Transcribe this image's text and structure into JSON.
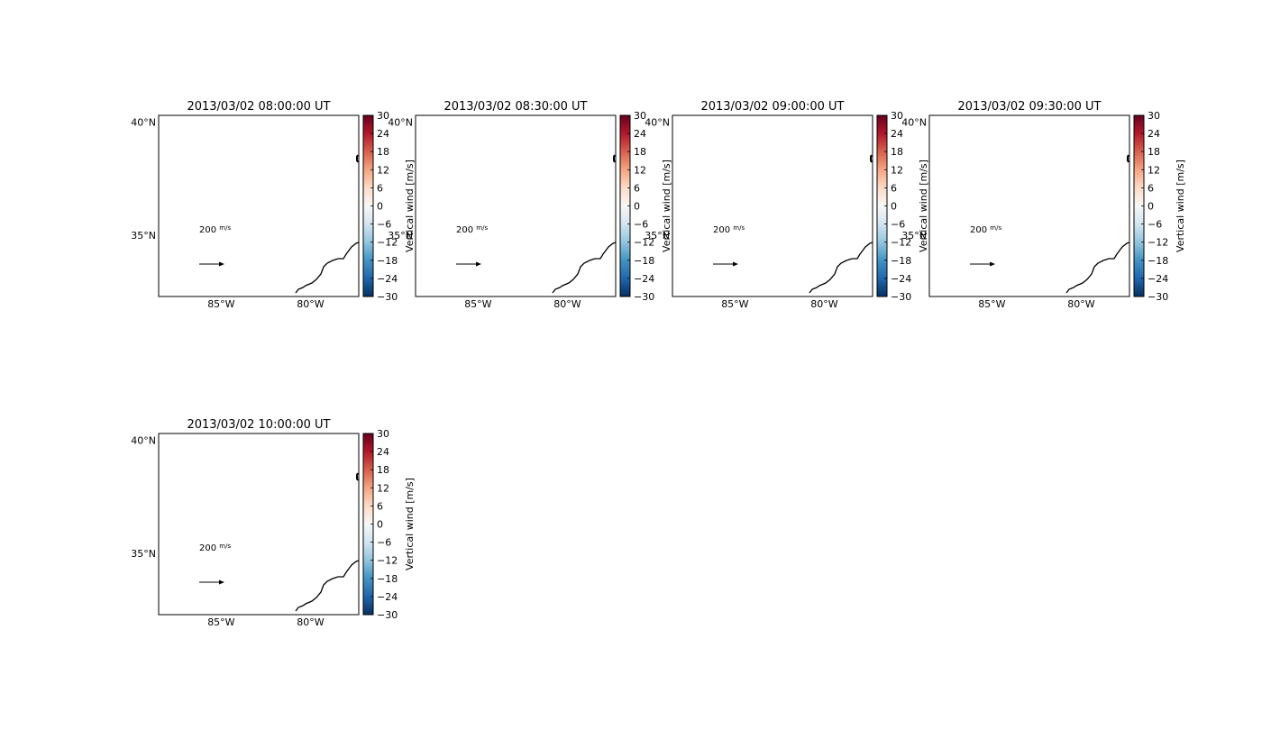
{
  "colorbar_label": "Vertical wind [m/s]",
  "quiver_key": {
    "value": "200",
    "unit_num": "m",
    "unit_den": "s"
  },
  "colormap": [
    "#053061",
    "#2166ac",
    "#4393c3",
    "#92c5de",
    "#d1e5f0",
    "#f7f7f7",
    "#fddbc7",
    "#f4a582",
    "#d6604d",
    "#b2182b",
    "#67001f"
  ],
  "chart_data": [
    {
      "type": "map",
      "title": "2013/03/02 08:00:00 UT",
      "x_tick_labels": [
        "85°W",
        "80°W"
      ],
      "y_tick_labels": [
        "40°N",
        "35°N"
      ],
      "lon_range": [
        -88.5,
        -77.3
      ],
      "lat_range": [
        32.3,
        40.3
      ],
      "colorbar_ticks": [
        "30",
        "24",
        "18",
        "12",
        "6",
        "0",
        "−6",
        "−12",
        "−18",
        "−24",
        "−30"
      ],
      "colorbar_range": [
        -30,
        30
      ]
    },
    {
      "type": "map",
      "title": "2013/03/02 08:30:00 UT",
      "x_tick_labels": [
        "85°W",
        "80°W"
      ],
      "y_tick_labels": [
        "40°N",
        "35°N"
      ],
      "lon_range": [
        -88.5,
        -77.3
      ],
      "lat_range": [
        32.3,
        40.3
      ],
      "colorbar_ticks": [
        "30",
        "24",
        "18",
        "12",
        "6",
        "0",
        "−6",
        "−12",
        "−18",
        "−24",
        "−30"
      ],
      "colorbar_range": [
        -30,
        30
      ]
    },
    {
      "type": "map",
      "title": "2013/03/02 09:00:00 UT",
      "x_tick_labels": [
        "85°W",
        "80°W"
      ],
      "y_tick_labels": [
        "40°N",
        "35°N"
      ],
      "lon_range": [
        -88.5,
        -77.3
      ],
      "lat_range": [
        32.3,
        40.3
      ],
      "colorbar_ticks": [
        "30",
        "24",
        "18",
        "12",
        "6",
        "0",
        "−6",
        "−12",
        "−18",
        "−24",
        "−30"
      ],
      "colorbar_range": [
        -30,
        30
      ]
    },
    {
      "type": "map",
      "title": "2013/03/02 09:30:00 UT",
      "x_tick_labels": [
        "85°W",
        "80°W"
      ],
      "y_tick_labels": [
        "40°N",
        "35°N"
      ],
      "lon_range": [
        -88.5,
        -77.3
      ],
      "lat_range": [
        32.3,
        40.3
      ],
      "colorbar_ticks": [
        "30",
        "24",
        "18",
        "12",
        "6",
        "0",
        "−6",
        "−12",
        "−18",
        "−24",
        "−30"
      ],
      "colorbar_range": [
        -30,
        30
      ]
    },
    {
      "type": "map",
      "title": "2013/03/02 10:00:00 UT",
      "x_tick_labels": [
        "85°W",
        "80°W"
      ],
      "y_tick_labels": [
        "40°N",
        "35°N"
      ],
      "lon_range": [
        -88.5,
        -77.3
      ],
      "lat_range": [
        32.3,
        40.3
      ],
      "colorbar_ticks": [
        "30",
        "24",
        "18",
        "12",
        "6",
        "0",
        "−6",
        "−12",
        "−18",
        "−24",
        "−30"
      ],
      "colorbar_range": [
        -30,
        30
      ]
    }
  ]
}
